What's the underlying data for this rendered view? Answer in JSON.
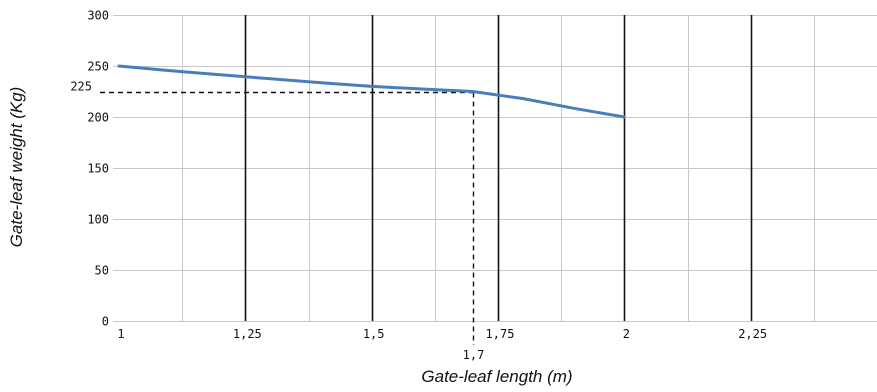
{
  "chart_data": {
    "type": "line",
    "title": "",
    "xlabel": "Gate-leaf length (m)",
    "ylabel": "Gate-leaf weight (Kg)",
    "xlim": [
      1,
      2.5
    ],
    "ylim": [
      0,
      300
    ],
    "x_major_ticks": [
      1,
      1.25,
      1.5,
      1.75,
      2,
      2.25
    ],
    "x_tick_labels": [
      "1",
      "1,25",
      "1,5",
      "1,75",
      "2",
      "2,25"
    ],
    "y_ticks": [
      0,
      50,
      100,
      150,
      200,
      250,
      300
    ],
    "y_tick_labels": [
      "0",
      "50",
      "100",
      "150",
      "200",
      "250",
      "300"
    ],
    "grid": true,
    "series": [
      {
        "color": "#4a7ebb",
        "x": [
          1,
          1.1,
          1.2,
          1.3,
          1.4,
          1.5,
          1.6,
          1.7,
          1.8,
          1.9,
          2.0
        ],
        "y": [
          250,
          245.5,
          241.5,
          237.5,
          233.5,
          230,
          227.5,
          225,
          218,
          208.5,
          200
        ]
      }
    ],
    "annotation": {
      "x": 1.7,
      "y": 225,
      "x_label": "1,7",
      "y_label": "225",
      "style": "dashed"
    }
  }
}
